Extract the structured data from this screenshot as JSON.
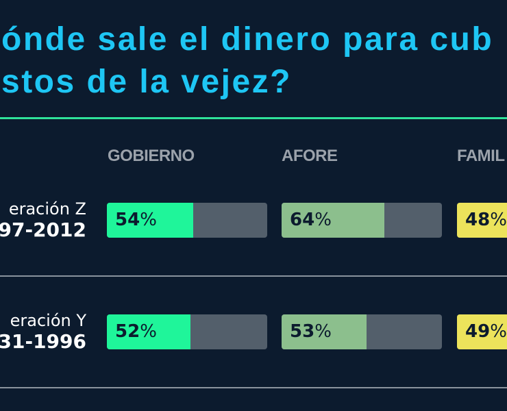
{
  "title": {
    "line1": "ónde sale el dinero para cub",
    "line2": "stos de la vejez?"
  },
  "colors": {
    "background": "#0c1b2e",
    "title": "#1ec6f4",
    "accent_line": "#2fe39a",
    "track": "#535f6b",
    "gobierno": "#1ff59a",
    "afore": "#8cbf8d",
    "familia": "#ece35b"
  },
  "chart_data": {
    "type": "bar",
    "categories": [
      "GOBIERNO",
      "AFORE",
      "FAMIL"
    ],
    "rows": [
      {
        "generation": "eración Z",
        "years": "97-2012",
        "values": [
          54,
          64,
          48
        ],
        "labels": [
          "54",
          "64",
          "48"
        ]
      },
      {
        "generation": "eración Y",
        "years": "31-1996",
        "values": [
          52,
          53,
          49
        ],
        "labels": [
          "52",
          "53",
          "49"
        ]
      }
    ],
    "unit": "%",
    "ylim": [
      0,
      100
    ]
  }
}
